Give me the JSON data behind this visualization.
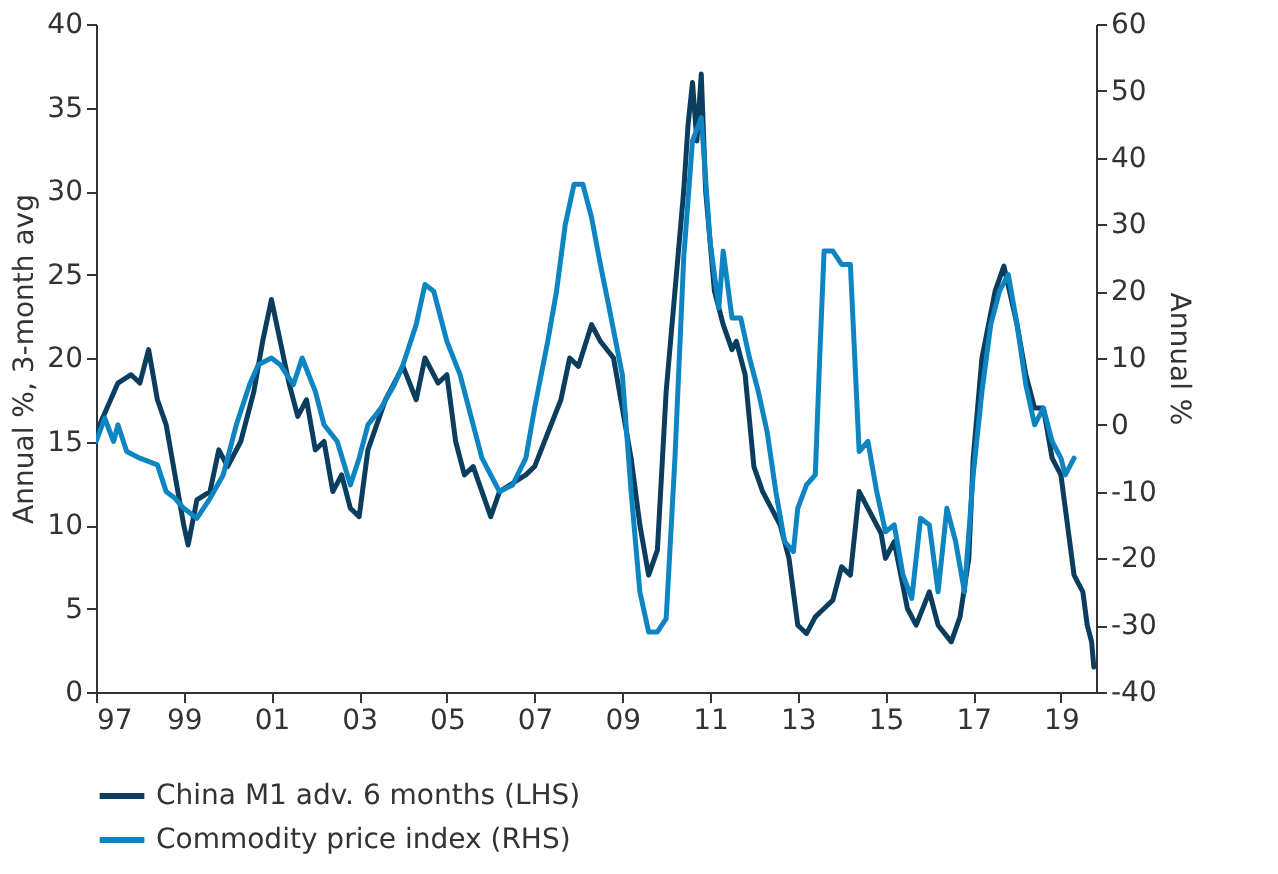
{
  "chart_data": {
    "type": "line",
    "ylabel": "Annual %, 3-month avg",
    "y2label": "Annual %",
    "xlim": [
      1997,
      2019.8
    ],
    "xticks": [
      {
        "value": 1997,
        "label": "97"
      },
      {
        "value": 1999,
        "label": "99"
      },
      {
        "value": 2001,
        "label": "01"
      },
      {
        "value": 2003,
        "label": "03"
      },
      {
        "value": 2005,
        "label": "05"
      },
      {
        "value": 2007,
        "label": "07"
      },
      {
        "value": 2009,
        "label": "09"
      },
      {
        "value": 2011,
        "label": "11"
      },
      {
        "value": 2013,
        "label": "13"
      },
      {
        "value": 2015,
        "label": "15"
      },
      {
        "value": 2017,
        "label": "17"
      },
      {
        "value": 2019,
        "label": "19"
      }
    ],
    "ylim": [
      0,
      40
    ],
    "yticks": [
      0,
      5,
      10,
      15,
      20,
      25,
      30,
      35,
      40
    ],
    "y2lim": [
      -40,
      60
    ],
    "y2ticks": [
      -40,
      -30,
      -20,
      -10,
      0,
      10,
      20,
      30,
      40,
      50,
      60
    ],
    "legend": "bottom",
    "grid": false,
    "series": [
      {
        "name": "China M1 adv. 6 months (LHS)",
        "color": "#0b3d5e",
        "axis": "y",
        "x": [
          1997.0,
          1997.5,
          1997.8,
          1998.0,
          1998.2,
          1998.4,
          1998.6,
          1998.8,
          1999.0,
          1999.1,
          1999.3,
          1999.6,
          1999.8,
          2000.0,
          2000.3,
          2000.6,
          2000.8,
          2001.0,
          2001.2,
          2001.4,
          2001.6,
          2001.8,
          2002.0,
          2002.2,
          2002.4,
          2002.6,
          2002.8,
          2003.0,
          2003.2,
          2003.4,
          2003.6,
          2003.8,
          2004.0,
          2004.3,
          2004.5,
          2004.8,
          2005.0,
          2005.2,
          2005.4,
          2005.6,
          2005.8,
          2006.0,
          2006.2,
          2006.5,
          2006.8,
          2007.0,
          2007.3,
          2007.6,
          2007.8,
          2008.0,
          2008.3,
          2008.5,
          2008.8,
          2009.0,
          2009.2,
          2009.4,
          2009.6,
          2009.8,
          2010.0,
          2010.2,
          2010.4,
          2010.5,
          2010.6,
          2010.7,
          2010.8,
          2010.9,
          2011.0,
          2011.1,
          2011.3,
          2011.5,
          2011.6,
          2011.8,
          2012.0,
          2012.2,
          2012.4,
          2012.6,
          2012.8,
          2013.0,
          2013.2,
          2013.4,
          2013.6,
          2013.8,
          2014.0,
          2014.2,
          2014.4,
          2014.6,
          2014.9,
          2015.0,
          2015.2,
          2015.5,
          2015.7,
          2016.0,
          2016.2,
          2016.5,
          2016.7,
          2016.9,
          2017.0,
          2017.2,
          2017.5,
          2017.7,
          2018.0,
          2018.2,
          2018.4,
          2018.6,
          2018.8,
          2019.0,
          2019.2,
          2019.3,
          2019.5,
          2019.6,
          2019.7,
          2019.75
        ],
        "values": [
          15.5,
          18.5,
          19,
          18.5,
          20.5,
          17.5,
          16,
          13,
          10,
          8.8,
          11.5,
          12,
          14.5,
          13.5,
          15,
          18,
          21,
          23.5,
          21,
          18.5,
          16.5,
          17.5,
          14.5,
          15,
          12,
          13,
          11,
          10.5,
          14.5,
          16,
          17.5,
          18.5,
          19.5,
          17.5,
          20,
          18.5,
          19,
          15,
          13,
          13.5,
          12,
          10.5,
          12,
          12.5,
          13,
          13.5,
          15.5,
          17.5,
          20,
          19.5,
          22,
          21,
          20,
          17,
          14,
          10,
          7,
          8.5,
          18,
          24,
          30,
          34,
          36.5,
          33,
          37,
          30,
          27,
          24,
          22,
          20.5,
          21,
          19,
          13.5,
          12,
          11,
          10,
          8,
          4,
          3.5,
          4.5,
          5,
          5.5,
          7.5,
          7,
          12,
          11,
          9.5,
          8,
          9,
          5,
          4,
          6,
          4,
          3,
          4.5,
          8,
          14,
          20,
          24,
          25.5,
          22,
          19,
          17,
          17,
          14,
          13,
          9,
          7,
          6,
          4,
          3,
          1.5
        ]
      },
      {
        "name": "Commodity price index (RHS)",
        "color": "#0d85c2",
        "axis": "y2",
        "x": [
          1997.0,
          1997.2,
          1997.4,
          1997.5,
          1997.7,
          1998.0,
          1998.4,
          1998.6,
          1998.8,
          1999.0,
          1999.3,
          1999.6,
          1999.9,
          2000.2,
          2000.5,
          2000.7,
          2001.0,
          2001.2,
          2001.5,
          2001.7,
          2002.0,
          2002.2,
          2002.5,
          2002.8,
          2003.0,
          2003.2,
          2003.5,
          2003.8,
          2004.0,
          2004.3,
          2004.5,
          2004.7,
          2005.0,
          2005.3,
          2005.6,
          2005.8,
          2006.0,
          2006.2,
          2006.5,
          2006.8,
          2007.0,
          2007.3,
          2007.5,
          2007.7,
          2007.9,
          2008.1,
          2008.3,
          2008.5,
          2008.7,
          2009.0,
          2009.2,
          2009.4,
          2009.6,
          2009.8,
          2010.0,
          2010.2,
          2010.4,
          2010.6,
          2010.8,
          2011.0,
          2011.2,
          2011.3,
          2011.5,
          2011.7,
          2011.9,
          2012.1,
          2012.3,
          2012.5,
          2012.7,
          2012.9,
          2013.0,
          2013.2,
          2013.4,
          2013.5,
          2013.6,
          2013.8,
          2014.0,
          2014.2,
          2014.4,
          2014.6,
          2014.8,
          2015.0,
          2015.2,
          2015.4,
          2015.6,
          2015.8,
          2016.0,
          2016.2,
          2016.4,
          2016.6,
          2016.8,
          2017.0,
          2017.2,
          2017.4,
          2017.6,
          2017.8,
          2018.0,
          2018.2,
          2018.4,
          2018.6,
          2018.8,
          2019.0,
          2019.1,
          2019.3
        ],
        "values": [
          -2.5,
          1,
          -2.5,
          0,
          -4,
          -5,
          -6,
          -10,
          -11,
          -12.5,
          -14,
          -11,
          -7.5,
          0,
          6,
          9,
          10,
          9,
          6,
          10,
          5,
          0,
          -2.5,
          -9,
          -5,
          0,
          2.5,
          6,
          9,
          15,
          21,
          20,
          12.5,
          7.5,
          0,
          -5,
          -7.5,
          -10,
          -9,
          -5,
          2.5,
          12.5,
          20,
          30,
          36,
          36,
          31,
          24,
          17.5,
          7.5,
          -10,
          -25,
          -31,
          -31,
          -29,
          -5,
          25,
          42.5,
          46,
          27.5,
          17.5,
          26,
          16,
          16,
          10,
          5,
          -1,
          -10,
          -17.5,
          -19,
          -12.5,
          -9,
          -7.5,
          10,
          26,
          26,
          24,
          24,
          -4,
          -2.5,
          -10,
          -16,
          -15,
          -22.5,
          -26,
          -14,
          -15,
          -25,
          -12.5,
          -17.5,
          -25,
          -7.5,
          5,
          15,
          20,
          22.5,
          15,
          6,
          0,
          2.5,
          -2.5,
          -5,
          -7.5,
          -5
        ]
      }
    ]
  }
}
